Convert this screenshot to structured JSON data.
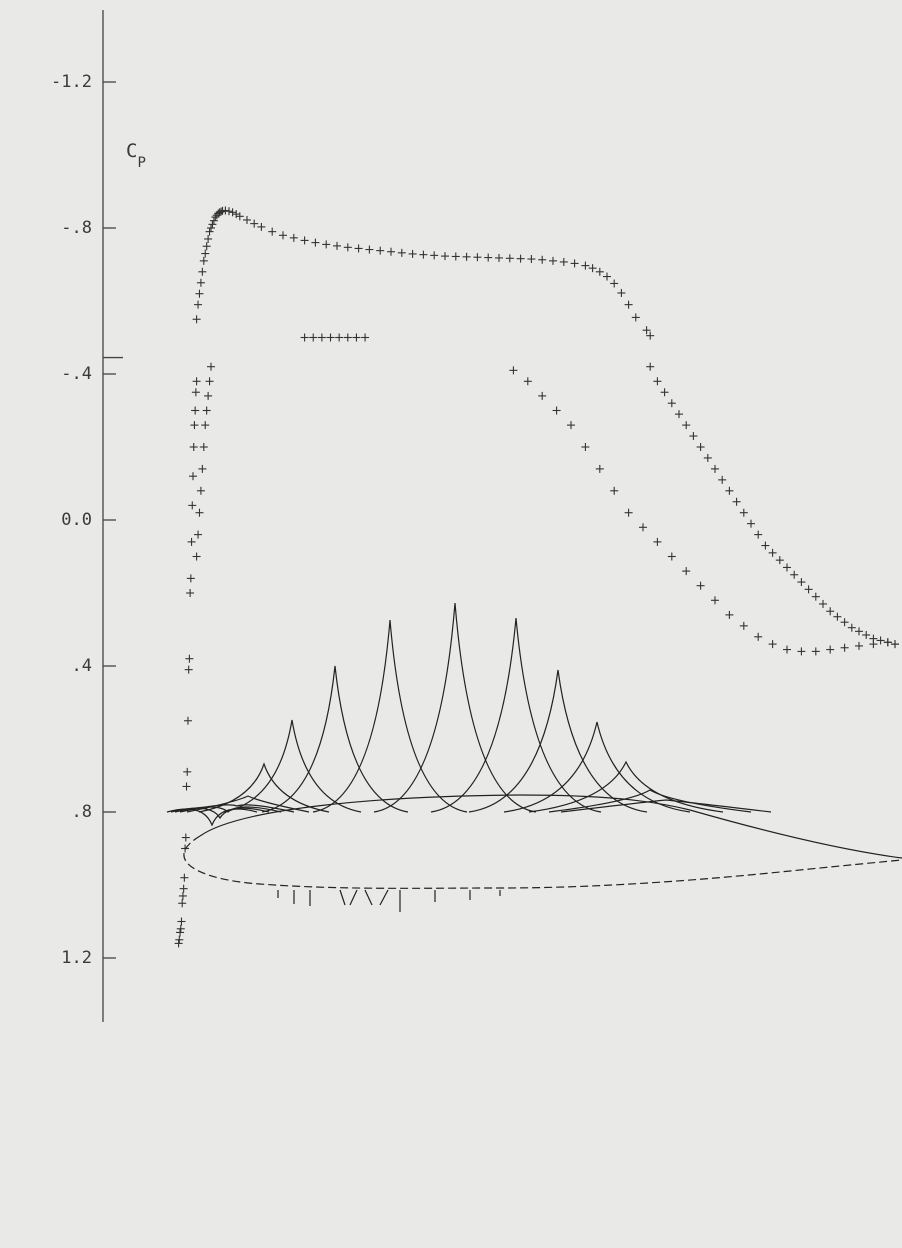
{
  "chart_data": {
    "type": "scatter",
    "ylabel": "C",
    "ylabel_sub": "P",
    "y_inverted": true,
    "ylim": [
      1.4,
      -1.4
    ],
    "yticks": [
      -1.2,
      -0.8,
      -0.4,
      0.0,
      0.4,
      0.8,
      1.2
    ],
    "ytick_labels": [
      "-1.2",
      "-.8",
      "-.4",
      "0.0",
      ".4",
      ".8",
      "1.2"
    ],
    "xlim": [
      0,
      1
    ],
    "x_axis_shown": false,
    "grid": false,
    "marker": "plus",
    "series": [
      {
        "x": [
          0.03,
          0.032,
          0.034,
          0.036,
          0.038,
          0.04,
          0.042,
          0.044,
          0.046,
          0.048,
          0.05,
          0.052,
          0.054,
          0.056,
          0.058,
          0.06,
          0.062,
          0.064,
          0.066,
          0.07,
          0.075,
          0.08,
          0.085,
          0.09,
          0.1,
          0.11,
          0.12,
          0.135,
          0.15,
          0.165,
          0.18,
          0.195,
          0.21,
          0.225,
          0.24,
          0.255,
          0.27,
          0.285,
          0.3,
          0.315,
          0.33,
          0.345,
          0.36,
          0.375,
          0.39,
          0.405,
          0.42,
          0.435,
          0.45,
          0.465,
          0.48,
          0.495,
          0.51,
          0.525,
          0.54,
          0.555,
          0.57,
          0.58,
          0.59,
          0.6,
          0.61,
          0.62,
          0.63,
          0.64,
          0.655,
          0.66
        ],
        "y": [
          -0.55,
          -0.59,
          -0.62,
          -0.65,
          -0.68,
          -0.71,
          -0.73,
          -0.75,
          -0.77,
          -0.79,
          -0.8,
          -0.81,
          -0.82,
          -0.83,
          -0.835,
          -0.84,
          -0.843,
          -0.845,
          -0.847,
          -0.848,
          -0.846,
          -0.843,
          -0.838,
          -0.832,
          -0.822,
          -0.812,
          -0.803,
          -0.79,
          -0.78,
          -0.773,
          -0.766,
          -0.76,
          -0.755,
          -0.751,
          -0.747,
          -0.744,
          -0.741,
          -0.738,
          -0.735,
          -0.732,
          -0.729,
          -0.727,
          -0.725,
          -0.723,
          -0.722,
          -0.721,
          -0.72,
          -0.719,
          -0.718,
          -0.717,
          -0.716,
          -0.715,
          -0.713,
          -0.71,
          -0.707,
          -0.703,
          -0.697,
          -0.69,
          -0.68,
          -0.667,
          -0.648,
          -0.622,
          -0.59,
          -0.555,
          -0.52,
          -0.505
        ]
      },
      {
        "x": [
          0.18,
          0.192,
          0.204,
          0.216,
          0.228,
          0.24,
          0.252,
          0.264
        ],
        "y": [
          -0.5,
          -0.5,
          -0.5,
          -0.5,
          -0.5,
          -0.5,
          -0.5,
          -0.5
        ]
      },
      {
        "x": [
          0.66,
          0.67,
          0.68,
          0.69,
          0.7,
          0.71,
          0.72,
          0.73,
          0.74,
          0.75,
          0.76,
          0.77,
          0.78,
          0.79,
          0.8,
          0.81,
          0.82,
          0.83,
          0.84,
          0.85,
          0.86,
          0.87,
          0.88,
          0.89,
          0.9,
          0.91,
          0.92,
          0.93,
          0.94,
          0.95,
          0.96,
          0.97,
          0.98,
          0.99,
          1.0
        ],
        "y": [
          -0.42,
          -0.38,
          -0.35,
          -0.32,
          -0.29,
          -0.26,
          -0.23,
          -0.2,
          -0.17,
          -0.14,
          -0.11,
          -0.08,
          -0.05,
          -0.02,
          0.01,
          0.04,
          0.07,
          0.09,
          0.11,
          0.13,
          0.15,
          0.17,
          0.19,
          0.21,
          0.23,
          0.25,
          0.265,
          0.28,
          0.295,
          0.305,
          0.315,
          0.325,
          0.33,
          0.335,
          0.34
        ]
      },
      {
        "x": [
          0.05,
          0.048,
          0.046,
          0.044,
          0.042,
          0.04,
          0.038,
          0.036,
          0.034,
          0.032,
          0.03
        ],
        "y": [
          -0.42,
          -0.38,
          -0.34,
          -0.3,
          -0.26,
          -0.2,
          -0.14,
          -0.08,
          -0.02,
          0.04,
          0.1
        ]
      },
      {
        "x": [
          0.47,
          0.49,
          0.51,
          0.53,
          0.55,
          0.57,
          0.59,
          0.61,
          0.63,
          0.65,
          0.67,
          0.69,
          0.71,
          0.73,
          0.75,
          0.77,
          0.79,
          0.81,
          0.83,
          0.85,
          0.87,
          0.89,
          0.91,
          0.93,
          0.95,
          0.97,
          0.99,
          1.0
        ],
        "y": [
          -0.41,
          -0.38,
          -0.34,
          -0.3,
          -0.26,
          -0.2,
          -0.14,
          -0.08,
          -0.02,
          0.02,
          0.06,
          0.1,
          0.14,
          0.18,
          0.22,
          0.26,
          0.29,
          0.32,
          0.34,
          0.355,
          0.36,
          0.36,
          0.355,
          0.35,
          0.345,
          0.34,
          0.335,
          0.34
        ]
      },
      {
        "x": [
          0.03,
          0.029,
          0.028,
          0.027,
          0.026,
          0.025,
          0.024,
          0.023,
          0.022,
          0.021,
          0.02,
          0.019,
          0.018,
          0.017,
          0.016,
          0.015,
          0.014,
          0.013,
          0.012,
          0.011,
          0.01,
          0.009,
          0.008,
          0.007,
          0.006,
          0.005
        ],
        "y": [
          -0.38,
          -0.35,
          -0.3,
          -0.26,
          -0.2,
          -0.12,
          -0.04,
          0.06,
          0.16,
          0.2,
          0.38,
          0.41,
          0.55,
          0.69,
          0.73,
          0.87,
          0.9,
          0.98,
          1.01,
          1.03,
          1.05,
          1.1,
          1.12,
          1.13,
          1.15,
          1.16
        ]
      }
    ]
  }
}
